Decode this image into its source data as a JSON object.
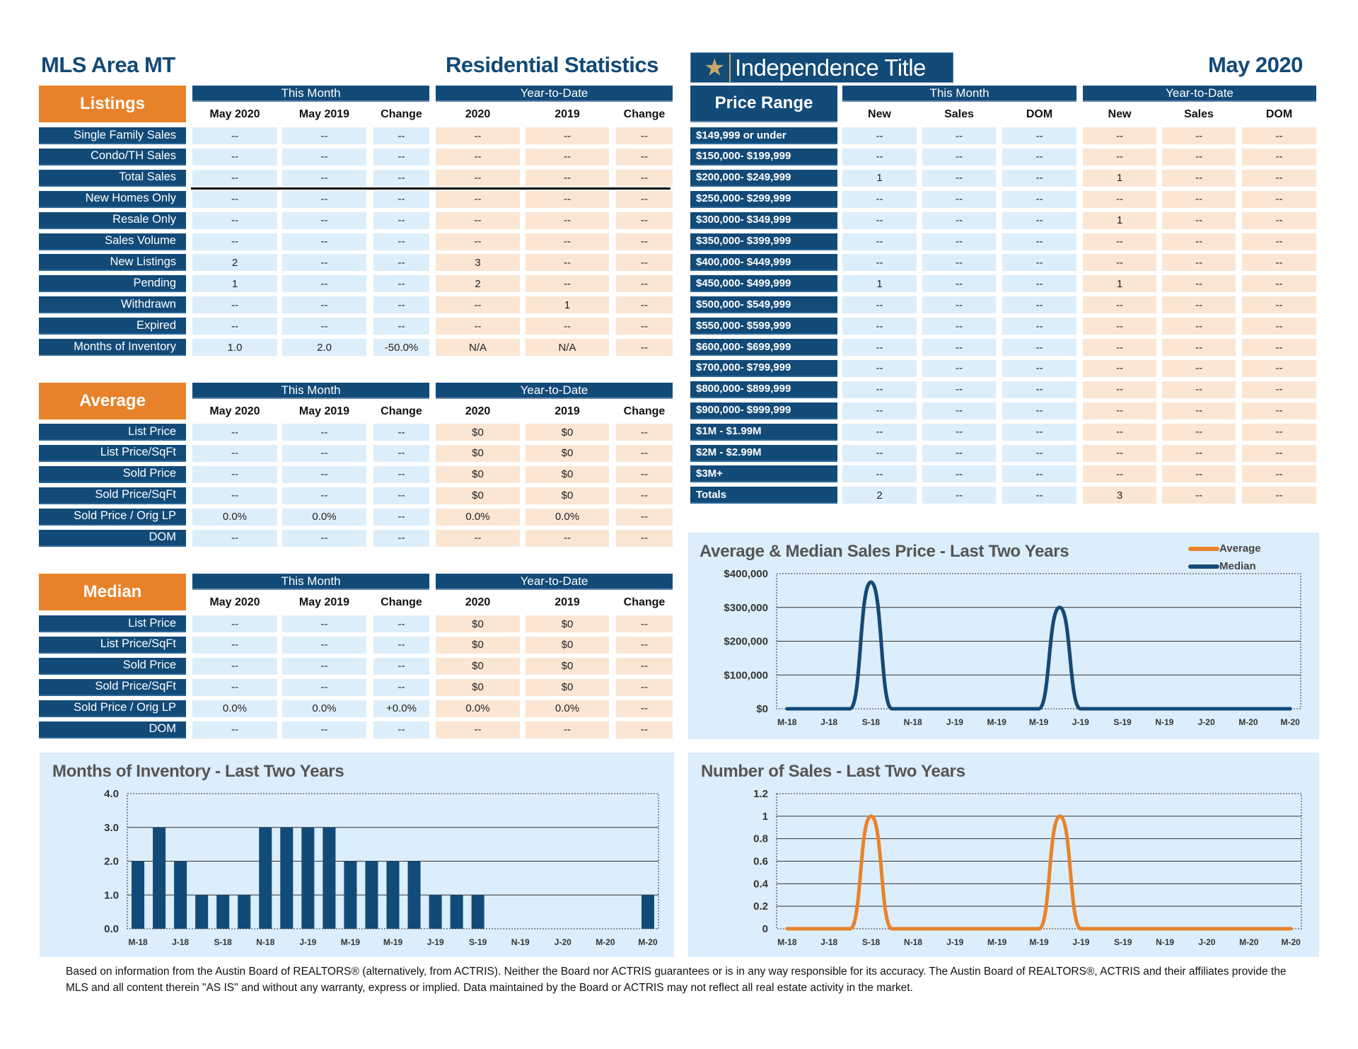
{
  "header": {
    "area": "MLS Area MT",
    "title": "Residential Statistics",
    "logo_text": "Independence Title",
    "logo_icon": "star-icon",
    "month": "May 2020"
  },
  "colors": {
    "navy": "#124a78",
    "orange": "#e8822a",
    "this_month_cell": "#ddeefb",
    "ytd_cell": "#fbe6d4",
    "chart_bg": "#dcedfb"
  },
  "listings": {
    "title": "Listings",
    "group1": "This Month",
    "group2": "Year-to-Date",
    "columns": [
      "May 2020",
      "May 2019",
      "Change",
      "2020",
      "2019",
      "Change"
    ],
    "rows": [
      {
        "label": "Single Family Sales",
        "values": [
          "--",
          "--",
          "--",
          "--",
          "--",
          "--"
        ]
      },
      {
        "label": "Condo/TH Sales",
        "values": [
          "--",
          "--",
          "--",
          "--",
          "--",
          "--"
        ]
      },
      {
        "label": "Total Sales",
        "values": [
          "--",
          "--",
          "--",
          "--",
          "--",
          "--"
        ]
      },
      {
        "label": "New Homes Only",
        "values": [
          "--",
          "--",
          "--",
          "--",
          "--",
          "--"
        ]
      },
      {
        "label": "Resale Only",
        "values": [
          "--",
          "--",
          "--",
          "--",
          "--",
          "--"
        ]
      },
      {
        "label": "Sales Volume",
        "values": [
          "--",
          "--",
          "--",
          "--",
          "--",
          "--"
        ]
      },
      {
        "label": "New Listings",
        "values": [
          "2",
          "--",
          "--",
          "3",
          "--",
          "--"
        ]
      },
      {
        "label": "Pending",
        "values": [
          "1",
          "--",
          "--",
          "2",
          "--",
          "--"
        ]
      },
      {
        "label": "Withdrawn",
        "values": [
          "--",
          "--",
          "--",
          "--",
          "1",
          "--"
        ]
      },
      {
        "label": "Expired",
        "values": [
          "--",
          "--",
          "--",
          "--",
          "--",
          "--"
        ]
      },
      {
        "label": "Months of Inventory",
        "values": [
          "1.0",
          "2.0",
          "-50.0%",
          "N/A",
          "N/A",
          "--"
        ]
      }
    ]
  },
  "average": {
    "title": "Average",
    "group1": "This Month",
    "group2": "Year-to-Date",
    "columns": [
      "May 2020",
      "May 2019",
      "Change",
      "2020",
      "2019",
      "Change"
    ],
    "rows": [
      {
        "label": "List Price",
        "values": [
          "--",
          "--",
          "--",
          "$0",
          "$0",
          "--"
        ]
      },
      {
        "label": "List Price/SqFt",
        "values": [
          "--",
          "--",
          "--",
          "$0",
          "$0",
          "--"
        ]
      },
      {
        "label": "Sold Price",
        "values": [
          "--",
          "--",
          "--",
          "$0",
          "$0",
          "--"
        ]
      },
      {
        "label": "Sold Price/SqFt",
        "values": [
          "--",
          "--",
          "--",
          "$0",
          "$0",
          "--"
        ]
      },
      {
        "label": "Sold Price / Orig LP",
        "values": [
          "0.0%",
          "0.0%",
          "--",
          "0.0%",
          "0.0%",
          "--"
        ]
      },
      {
        "label": "DOM",
        "values": [
          "--",
          "--",
          "--",
          "--",
          "--",
          "--"
        ]
      }
    ]
  },
  "median": {
    "title": "Median",
    "group1": "This Month",
    "group2": "Year-to-Date",
    "columns": [
      "May 2020",
      "May 2019",
      "Change",
      "2020",
      "2019",
      "Change"
    ],
    "rows": [
      {
        "label": "List Price",
        "values": [
          "--",
          "--",
          "--",
          "$0",
          "$0",
          "--"
        ]
      },
      {
        "label": "List Price/SqFt",
        "values": [
          "--",
          "--",
          "--",
          "$0",
          "$0",
          "--"
        ]
      },
      {
        "label": "Sold Price",
        "values": [
          "--",
          "--",
          "--",
          "$0",
          "$0",
          "--"
        ]
      },
      {
        "label": "Sold Price/SqFt",
        "values": [
          "--",
          "--",
          "--",
          "$0",
          "$0",
          "--"
        ]
      },
      {
        "label": "Sold Price / Orig LP",
        "values": [
          "0.0%",
          "0.0%",
          "+0.0%",
          "0.0%",
          "0.0%",
          "--"
        ]
      },
      {
        "label": "DOM",
        "values": [
          "--",
          "--",
          "--",
          "--",
          "--",
          "--"
        ]
      }
    ]
  },
  "price_range": {
    "title": "Price Range",
    "group1": "This Month",
    "group2": "Year-to-Date",
    "columns": [
      "New",
      "Sales",
      "DOM",
      "New",
      "Sales",
      "DOM"
    ],
    "rows": [
      {
        "label": "$149,999 or under",
        "values": [
          "--",
          "--",
          "--",
          "--",
          "--",
          "--"
        ]
      },
      {
        "label": "$150,000- $199,999",
        "values": [
          "--",
          "--",
          "--",
          "--",
          "--",
          "--"
        ]
      },
      {
        "label": "$200,000- $249,999",
        "values": [
          "1",
          "--",
          "--",
          "1",
          "--",
          "--"
        ]
      },
      {
        "label": "$250,000- $299,999",
        "values": [
          "--",
          "--",
          "--",
          "--",
          "--",
          "--"
        ]
      },
      {
        "label": "$300,000- $349,999",
        "values": [
          "--",
          "--",
          "--",
          "1",
          "--",
          "--"
        ]
      },
      {
        "label": "$350,000- $399,999",
        "values": [
          "--",
          "--",
          "--",
          "--",
          "--",
          "--"
        ]
      },
      {
        "label": "$400,000- $449,999",
        "values": [
          "--",
          "--",
          "--",
          "--",
          "--",
          "--"
        ]
      },
      {
        "label": "$450,000- $499,999",
        "values": [
          "1",
          "--",
          "--",
          "1",
          "--",
          "--"
        ]
      },
      {
        "label": "$500,000- $549,999",
        "values": [
          "--",
          "--",
          "--",
          "--",
          "--",
          "--"
        ]
      },
      {
        "label": "$550,000- $599,999",
        "values": [
          "--",
          "--",
          "--",
          "--",
          "--",
          "--"
        ]
      },
      {
        "label": "$600,000- $699,999",
        "values": [
          "--",
          "--",
          "--",
          "--",
          "--",
          "--"
        ]
      },
      {
        "label": "$700,000- $799,999",
        "values": [
          "--",
          "--",
          "--",
          "--",
          "--",
          "--"
        ]
      },
      {
        "label": "$800,000- $899,999",
        "values": [
          "--",
          "--",
          "--",
          "--",
          "--",
          "--"
        ]
      },
      {
        "label": "$900,000- $999,999",
        "values": [
          "--",
          "--",
          "--",
          "--",
          "--",
          "--"
        ]
      },
      {
        "label": "$1M - $1.99M",
        "values": [
          "--",
          "--",
          "--",
          "--",
          "--",
          "--"
        ]
      },
      {
        "label": "$2M - $2.99M",
        "values": [
          "--",
          "--",
          "--",
          "--",
          "--",
          "--"
        ]
      },
      {
        "label": "$3M+",
        "values": [
          "--",
          "--",
          "--",
          "--",
          "--",
          "--"
        ]
      },
      {
        "label": "Totals",
        "values": [
          "2",
          "--",
          "--",
          "3",
          "--",
          "--"
        ]
      }
    ]
  },
  "chart_data": [
    {
      "id": "price",
      "type": "line",
      "title": "Average & Median Sales Price - Last Two Years",
      "xtick_labels": [
        "M-18",
        "J-18",
        "S-18",
        "N-18",
        "J-19",
        "M-19",
        "M-19",
        "J-19",
        "S-19",
        "N-19",
        "J-20",
        "M-20",
        "M-20"
      ],
      "ylim": [
        0,
        400000
      ],
      "yticks": [
        "$0",
        "$100,000",
        "$200,000",
        "$300,000",
        "$400,000"
      ],
      "grid": true,
      "legend": "top-right",
      "series": [
        {
          "name": "Average",
          "color": "#e8822a",
          "values": [
            0,
            0,
            0,
            0,
            375000,
            0,
            0,
            0,
            0,
            0,
            0,
            0,
            0,
            300000,
            0,
            0,
            0,
            0,
            0,
            0,
            0,
            0,
            0,
            0,
            0
          ]
        },
        {
          "name": "Median",
          "color": "#124a78",
          "values": [
            0,
            0,
            0,
            0,
            375000,
            0,
            0,
            0,
            0,
            0,
            0,
            0,
            0,
            300000,
            0,
            0,
            0,
            0,
            0,
            0,
            0,
            0,
            0,
            0,
            0
          ]
        }
      ]
    },
    {
      "id": "sales",
      "type": "line",
      "title": "Number of Sales - Last Two Years",
      "xtick_labels": [
        "M-18",
        "J-18",
        "S-18",
        "N-18",
        "J-19",
        "M-19",
        "M-19",
        "J-19",
        "S-19",
        "N-19",
        "J-20",
        "M-20",
        "M-20"
      ],
      "ylim": [
        0,
        1.2
      ],
      "yticks": [
        "0",
        "0.2",
        "0.4",
        "0.6",
        "0.8",
        "1",
        "1.2"
      ],
      "grid": true,
      "series": [
        {
          "color": "#e8822a",
          "values": [
            0,
            0,
            0,
            0,
            1,
            0,
            0,
            0,
            0,
            0,
            0,
            0,
            0,
            1,
            0,
            0,
            0,
            0,
            0,
            0,
            0,
            0,
            0,
            0,
            0
          ]
        }
      ]
    },
    {
      "id": "inventory",
      "type": "bar",
      "title": "Months of Inventory - Last Two Years",
      "xtick_labels": [
        "M-18",
        "J-18",
        "S-18",
        "N-18",
        "J-19",
        "M-19",
        "M-19",
        "J-19",
        "S-19",
        "N-19",
        "J-20",
        "M-20",
        "M-20"
      ],
      "ylim": [
        0,
        4
      ],
      "yticks": [
        "0.0",
        "1.0",
        "2.0",
        "3.0",
        "4.0"
      ],
      "grid": true,
      "series": [
        {
          "color": "#124a78",
          "values": [
            2,
            3,
            2,
            1,
            1,
            1,
            3,
            3,
            3,
            3,
            2,
            2,
            2,
            2,
            1,
            1,
            1,
            0,
            0,
            0,
            0,
            0,
            0,
            0,
            1
          ]
        }
      ]
    }
  ],
  "footer": {
    "line1": "Based on information from the Austin Board of REALTORS® (alternatively, from ACTRIS). Neither the Board nor ACTRIS guarantees or is in any way responsible for its accuracy. The Austin Board of REALTORS®, ACTRIS and their affiliates provide the",
    "line2": "MLS and all content therein \"AS IS\" and without any warranty, express or implied. Data maintained by the Board or ACTRIS may not reflect all real estate activity in the market."
  }
}
